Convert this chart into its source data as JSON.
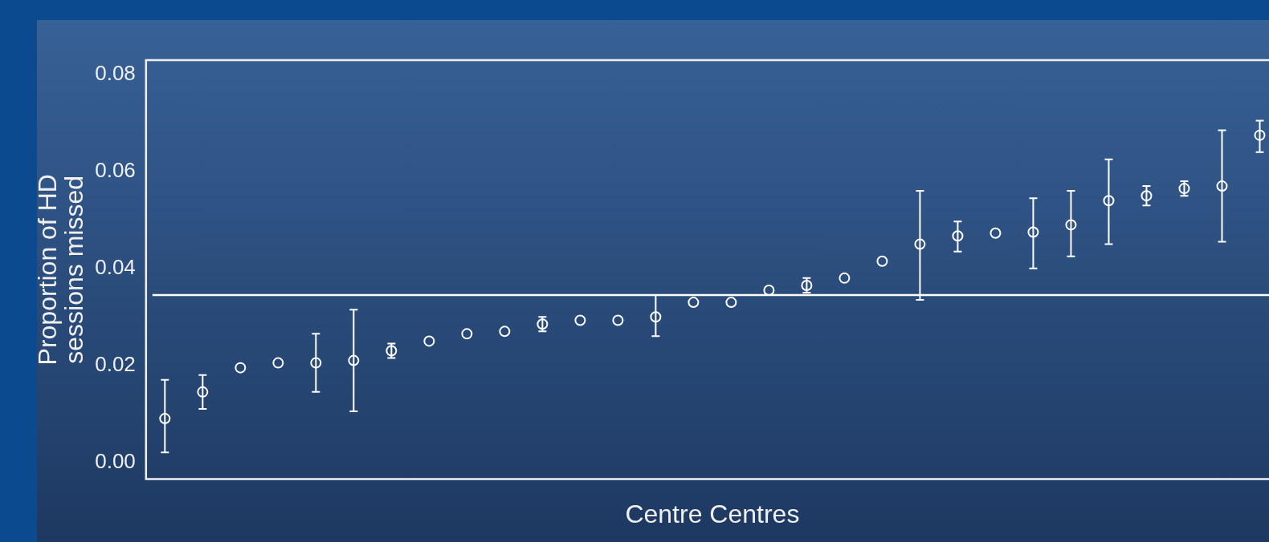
{
  "chart_data": {
    "type": "scatter",
    "xlabel": "Centre Centres",
    "ylabel": "Proportion of HD sessions missed",
    "categories": [
      null,
      null,
      null,
      null,
      null,
      null,
      null,
      null,
      null,
      null,
      null,
      null,
      null,
      null,
      null,
      null,
      null,
      null,
      null,
      null,
      null,
      null,
      null,
      null,
      null,
      null,
      null,
      null,
      null,
      null
    ],
    "values": [
      0.009,
      0.0145,
      0.0195,
      0.0205,
      0.0205,
      0.021,
      0.023,
      0.025,
      0.0265,
      0.027,
      0.0285,
      0.0293,
      0.0293,
      0.03,
      0.033,
      0.033,
      0.0355,
      0.0365,
      0.038,
      0.0415,
      0.045,
      0.0467,
      0.0473,
      0.0475,
      0.049,
      0.054,
      0.055,
      0.0565,
      0.057,
      0.0675
    ],
    "errors": [
      [
        0.002,
        0.017
      ],
      [
        0.011,
        0.018
      ],
      null,
      null,
      [
        0.0145,
        0.0265
      ],
      [
        0.0105,
        0.0315
      ],
      [
        0.0215,
        0.0245
      ],
      null,
      null,
      null,
      [
        0.027,
        0.03
      ],
      null,
      null,
      [
        0.026,
        0.0345
      ],
      null,
      null,
      null,
      [
        0.035,
        0.038
      ],
      null,
      null,
      [
        0.0335,
        0.056
      ],
      [
        0.0435,
        0.0497
      ],
      null,
      [
        0.04,
        0.0545
      ],
      [
        0.0425,
        0.056
      ],
      [
        0.045,
        0.0625
      ],
      [
        0.053,
        0.057
      ],
      [
        0.055,
        0.058
      ],
      [
        0.0455,
        0.0685
      ],
      [
        0.064,
        0.0705
      ]
    ],
    "color": "#ffffff",
    "marker": "circle",
    "ylim": [
      -0.0035,
      0.083
    ],
    "yticks": [
      {
        "value": 0,
        "label": "0.00"
      },
      {
        "value": 0.02,
        "label": "0.02"
      },
      {
        "value": 0.04,
        "label": "0.04"
      },
      {
        "value": 0.06,
        "label": "0.06"
      },
      {
        "value": 0.08,
        "label": "0.08"
      }
    ],
    "ref_lines": [
      {
        "axis": "y",
        "value": 0.0345,
        "color": "#ffffff"
      }
    ],
    "tick_labels": "y"
  }
}
